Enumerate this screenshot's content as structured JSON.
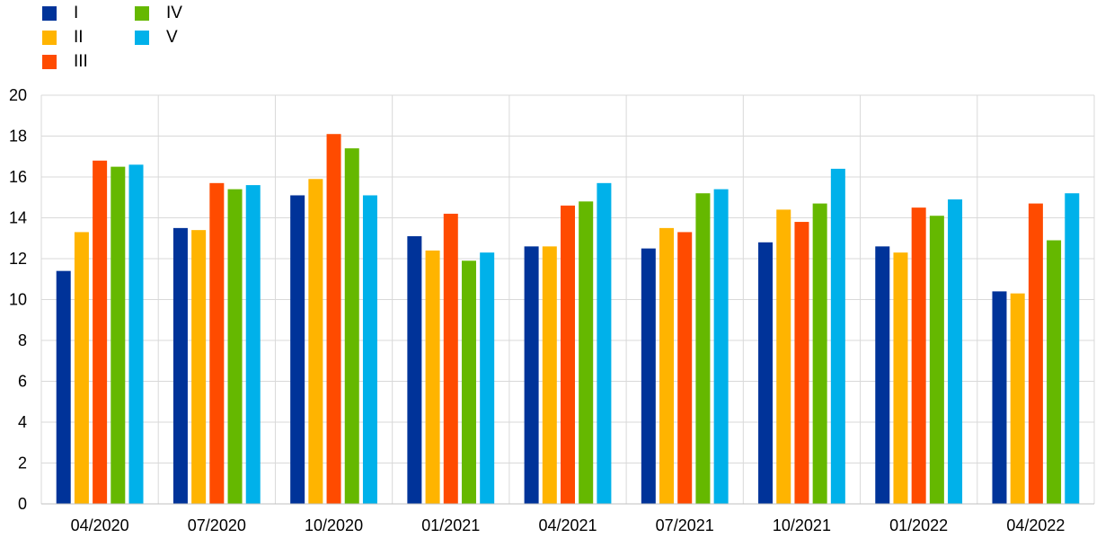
{
  "chart_data": {
    "type": "bar",
    "categories": [
      "04/2020",
      "07/2020",
      "10/2020",
      "01/2021",
      "04/2021",
      "07/2021",
      "10/2021",
      "01/2022",
      "04/2022"
    ],
    "series": [
      {
        "name": "I",
        "color": "#003399",
        "values": [
          11.4,
          13.5,
          15.1,
          13.1,
          12.6,
          12.5,
          12.8,
          12.6,
          10.4
        ]
      },
      {
        "name": "II",
        "color": "#FFB400",
        "values": [
          13.3,
          13.4,
          15.9,
          12.4,
          12.6,
          13.5,
          14.4,
          12.3,
          10.3
        ]
      },
      {
        "name": "III",
        "color": "#FF4B00",
        "values": [
          16.8,
          15.7,
          18.1,
          14.2,
          14.6,
          13.3,
          13.8,
          14.5,
          14.7
        ]
      },
      {
        "name": "IV",
        "color": "#65B800",
        "values": [
          16.5,
          15.4,
          17.4,
          11.9,
          14.8,
          15.2,
          14.7,
          14.1,
          12.9
        ]
      },
      {
        "name": "V",
        "color": "#00B1EA",
        "values": [
          16.6,
          15.6,
          15.1,
          12.3,
          15.7,
          15.4,
          16.4,
          14.9,
          15.2
        ]
      }
    ],
    "ylim": [
      0,
      20
    ],
    "yticks": [
      0,
      2,
      4,
      6,
      8,
      10,
      12,
      14,
      16,
      18,
      20
    ],
    "grid": true,
    "legend_position": "top-left"
  }
}
